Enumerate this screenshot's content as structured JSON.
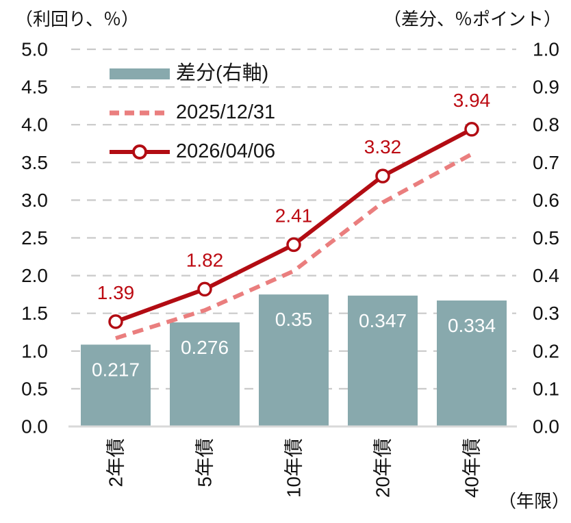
{
  "colors": {
    "bar": "#88a9ad",
    "bar_label_text": "#ffffff",
    "line_current": "#b20c13",
    "line_previous": "#ea7e7e",
    "data_label_text": "#bc0a12",
    "gridline": "#c9c9c9",
    "baseline": "#d9d9d9",
    "tick_text": "#111111"
  },
  "chart_data": {
    "type": "bar+line combo",
    "title": "",
    "categories": [
      "2年債",
      "5年債",
      "10年債",
      "20年債",
      "40年債"
    ],
    "series": [
      {
        "name": "差分(右軸)",
        "type": "bar",
        "axis": "right",
        "values": [
          0.217,
          0.276,
          0.35,
          0.347,
          0.334
        ],
        "data_labels_visible": true
      },
      {
        "name": "2025/12/31",
        "type": "line-dashed",
        "axis": "left",
        "values": [
          1.17,
          1.54,
          2.06,
          2.97,
          3.61
        ],
        "estimated_from_pixels": true,
        "data_labels_visible": false
      },
      {
        "name": "2026/04/06",
        "type": "line-solid-markers",
        "axis": "left",
        "values": [
          1.39,
          1.82,
          2.41,
          3.32,
          3.94
        ],
        "data_labels_visible": true
      }
    ],
    "left_axis": {
      "title": "（利回り、％）",
      "ticks": [
        "5.0",
        "4.5",
        "4.0",
        "3.5",
        "3.0",
        "2.5",
        "2.0",
        "1.5",
        "1.0",
        "0.5",
        "0.0"
      ],
      "min": 0,
      "max": 5
    },
    "right_axis": {
      "title": "（差分、％ポイント）",
      "ticks": [
        "1.0",
        "0.9",
        "0.8",
        "0.7",
        "0.6",
        "0.5",
        "0.4",
        "0.3",
        "0.2",
        "0.1",
        "0.0"
      ],
      "min": 0,
      "max": 1
    },
    "xlabel": "（年限）",
    "grid": "dashed horizontal",
    "legend_position": "upper-left inside plot"
  }
}
